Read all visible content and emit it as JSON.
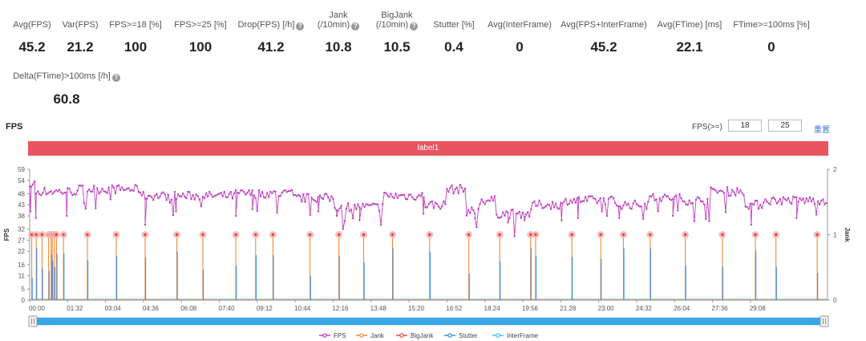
{
  "metrics": [
    {
      "label": "Avg(FPS)",
      "value": "45.2",
      "help": false
    },
    {
      "label": "Var(FPS)",
      "value": "21.2",
      "help": false
    },
    {
      "label": "FPS>=18 [%]",
      "value": "100",
      "help": false
    },
    {
      "label": "FPS>=25 [%]",
      "value": "100",
      "help": false
    },
    {
      "label": "Drop(FPS) [/h]",
      "value": "41.2",
      "help": true
    },
    {
      "label1": "Jank",
      "label": "(/10min)",
      "value": "10.8",
      "help": true
    },
    {
      "label1": "BigJank",
      "label": "(/10min)",
      "value": "10.5",
      "help": true
    },
    {
      "label": "Stutter [%]",
      "value": "0.4",
      "help": false
    },
    {
      "label": "Avg(InterFrame)",
      "value": "0",
      "help": false
    },
    {
      "label": "Avg(FPS+InterFrame)",
      "value": "45.2",
      "help": false
    },
    {
      "label": "Avg(FTime) [ms]",
      "value": "22.1",
      "help": false
    },
    {
      "label": "FTime>=100ms [%]",
      "value": "0",
      "help": false
    },
    {
      "label": "Delta(FTime)>100ms [/h]",
      "value": "60.8",
      "help": true
    }
  ],
  "help_glyph": "?",
  "chart_title": "FPS",
  "threshold": {
    "label": "FPS(>=)",
    "low": "18",
    "high": "25",
    "reset": "重置"
  },
  "label_bar": {
    "text": "label1",
    "color": "#e8545f"
  },
  "chart_data": {
    "type": "line",
    "title": "FPS",
    "ylabel": "FPS",
    "y2label": "Jank",
    "y_ticks": [
      0,
      5,
      11,
      16,
      22,
      27,
      32,
      38,
      43,
      48,
      54,
      59
    ],
    "ylim": [
      0,
      59
    ],
    "y2_ticks": [
      0,
      1,
      2
    ],
    "y2lim": [
      0,
      2
    ],
    "xlim_seconds": [
      0,
      1935
    ],
    "x_ticks": [
      "00:00",
      "01:32",
      "03:04",
      "04:36",
      "06:08",
      "07:40",
      "09:12",
      "10:44",
      "12:16",
      "13:48",
      "15:20",
      "16:52",
      "18:24",
      "19:56",
      "21:28",
      "23:00",
      "24:32",
      "26:04",
      "27:36",
      "29:08"
    ],
    "x_tick_interval_seconds": 92,
    "fps_segments_seconds": [
      {
        "start": 0,
        "end": 15,
        "fps": 52
      },
      {
        "start": 15,
        "end": 120,
        "fps": 49
      },
      {
        "start": 120,
        "end": 270,
        "fps": 50
      },
      {
        "start": 270,
        "end": 500,
        "fps": 47
      },
      {
        "start": 500,
        "end": 640,
        "fps": 48
      },
      {
        "start": 640,
        "end": 740,
        "fps": 46
      },
      {
        "start": 740,
        "end": 860,
        "fps": 42
      },
      {
        "start": 860,
        "end": 960,
        "fps": 47
      },
      {
        "start": 960,
        "end": 1010,
        "fps": 43
      },
      {
        "start": 1010,
        "end": 1060,
        "fps": 50
      },
      {
        "start": 1060,
        "end": 1090,
        "fps": 40
      },
      {
        "start": 1090,
        "end": 1130,
        "fps": 45
      },
      {
        "start": 1130,
        "end": 1220,
        "fps": 39
      },
      {
        "start": 1220,
        "end": 1300,
        "fps": 43
      },
      {
        "start": 1300,
        "end": 1420,
        "fps": 45
      },
      {
        "start": 1420,
        "end": 1500,
        "fps": 43
      },
      {
        "start": 1500,
        "end": 1580,
        "fps": 46
      },
      {
        "start": 1580,
        "end": 1650,
        "fps": 45
      },
      {
        "start": 1650,
        "end": 1740,
        "fps": 49
      },
      {
        "start": 1740,
        "end": 1780,
        "fps": 43
      },
      {
        "start": 1780,
        "end": 1935,
        "fps": 45
      }
    ],
    "fps_dips": [
      {
        "t": 2,
        "fps": 40
      },
      {
        "t": 15,
        "fps": 37
      },
      {
        "t": 90,
        "fps": 38
      },
      {
        "t": 280,
        "fps": 34
      },
      {
        "t": 355,
        "fps": 40
      },
      {
        "t": 500,
        "fps": 38
      },
      {
        "t": 540,
        "fps": 41
      },
      {
        "t": 700,
        "fps": 40
      },
      {
        "t": 745,
        "fps": 38
      },
      {
        "t": 800,
        "fps": 36
      },
      {
        "t": 955,
        "fps": 39
      },
      {
        "t": 1080,
        "fps": 37
      },
      {
        "t": 1160,
        "fps": 35
      },
      {
        "t": 1200,
        "fps": 36
      },
      {
        "t": 1290,
        "fps": 36
      },
      {
        "t": 1330,
        "fps": 37
      },
      {
        "t": 1430,
        "fps": 37
      },
      {
        "t": 1560,
        "fps": 38
      },
      {
        "t": 1750,
        "fps": 34
      },
      {
        "t": 1860,
        "fps": 37
      }
    ],
    "jank_events_seconds": [
      5,
      16,
      30,
      46,
      52,
      55,
      60,
      65,
      82,
      140,
      210,
      280,
      357,
      420,
      500,
      548,
      590,
      680,
      750,
      810,
      880,
      970,
      1065,
      1140,
      1215,
      1227,
      1315,
      1385,
      1440,
      1505,
      1590,
      1680,
      1760,
      1810,
      1910
    ],
    "series": [
      {
        "name": "FPS",
        "color": "#c040c0"
      },
      {
        "name": "Jank",
        "color": "#f08a3c"
      },
      {
        "name": "BigJank",
        "color": "#e8453c"
      },
      {
        "name": "Stutter",
        "color": "#3c8ee8"
      },
      {
        "name": "InterFrame",
        "color": "#40c8e8"
      }
    ],
    "zoom_range": [
      0,
      1
    ]
  }
}
